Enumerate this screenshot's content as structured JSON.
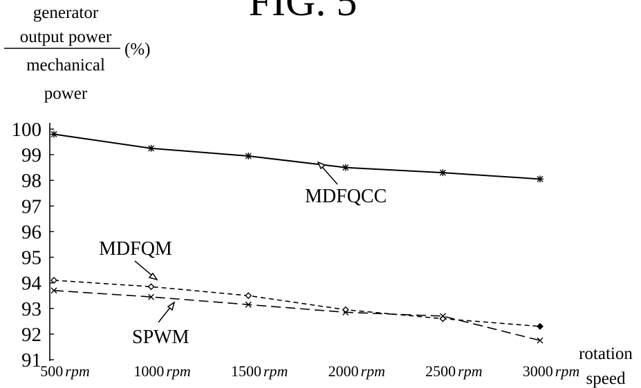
{
  "figure_label": "FIG. 5",
  "chart_data": {
    "type": "line",
    "ylabel": {
      "numerator_line1": "generator",
      "numerator_line2": "output power",
      "denominator_line1": "mechanical",
      "denominator_line2": "power",
      "unit": "(%)"
    },
    "xlabel": {
      "line1": "rotation",
      "line2": "speed"
    },
    "x": [
      500,
      1000,
      1500,
      2000,
      2500,
      3000
    ],
    "x_tick_numbers": [
      "500",
      "1000",
      "1500",
      "2000",
      "2500",
      "3000"
    ],
    "x_tick_unit": "rpm",
    "y_ticks": [
      "91",
      "92",
      "93",
      "94",
      "95",
      "96",
      "97",
      "98",
      "99",
      "100"
    ],
    "ylim": [
      91,
      100
    ],
    "grid": false,
    "series": [
      {
        "name": "MDFQCC",
        "values": [
          99.8,
          99.25,
          98.95,
          98.5,
          98.3,
          98.05
        ],
        "line_style": "solid",
        "marker": "asterisk"
      },
      {
        "name": "MDFQM",
        "values": [
          94.1,
          93.85,
          93.5,
          92.95,
          92.6,
          92.3
        ],
        "line_style": "short-dash",
        "marker": "diamond"
      },
      {
        "name": "SPWM",
        "values": [
          93.7,
          93.45,
          93.15,
          92.85,
          92.7,
          91.75
        ],
        "line_style": "long-dash",
        "marker": "x"
      }
    ],
    "annotations": [
      "MDFQCC",
      "MDFQM",
      "SPWM"
    ]
  }
}
